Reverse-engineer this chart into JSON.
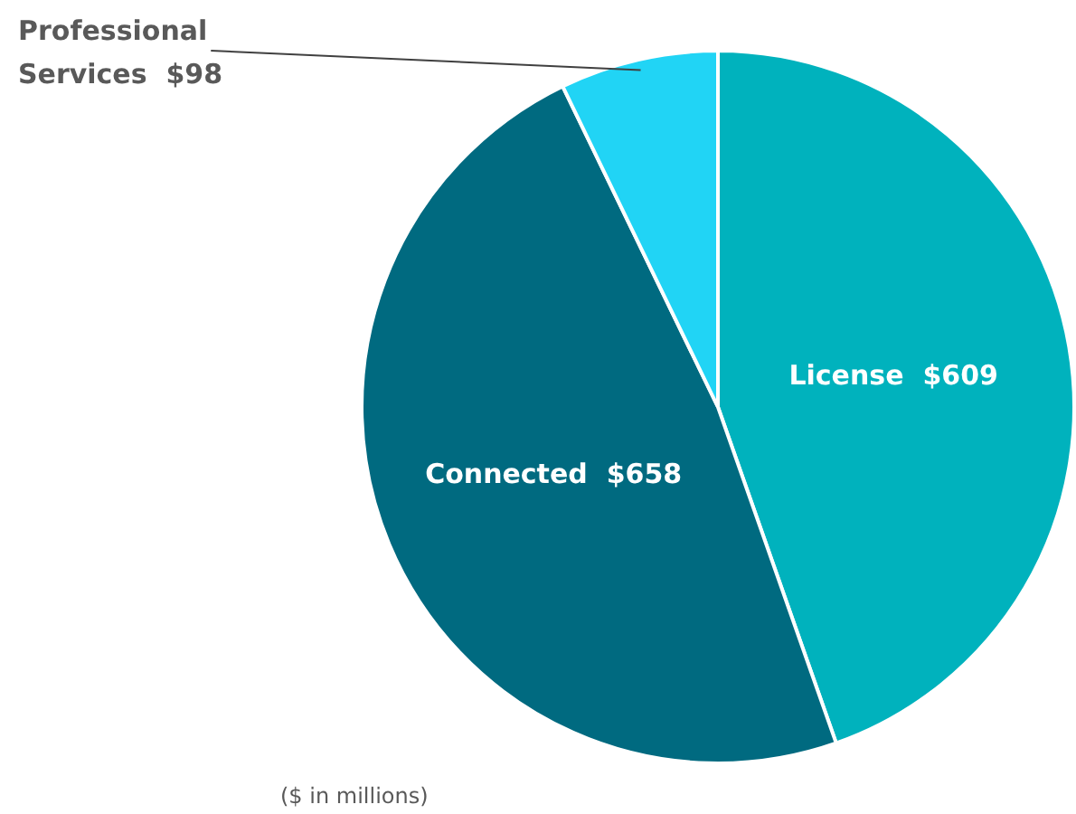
{
  "chart_data": {
    "type": "pie",
    "categories": [
      "License",
      "Connected",
      "Professional Services"
    ],
    "values": [
      609,
      658,
      98
    ],
    "value_labels": [
      "$609",
      "$658",
      "$98"
    ],
    "colors": [
      "#00b2bd",
      "#006a80",
      "#21d4f5"
    ],
    "annotations": [
      "($ in millions)"
    ]
  }
}
